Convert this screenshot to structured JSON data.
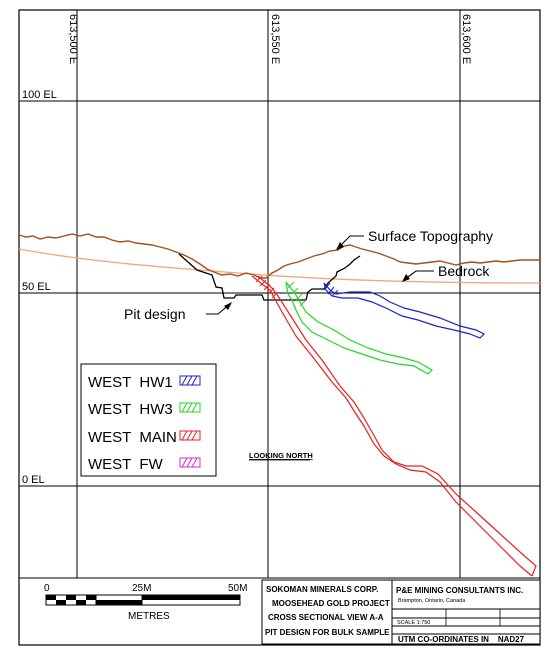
{
  "gridlines": {
    "eastings": [
      "613,500 E",
      "613,550 E",
      "613,600 E"
    ],
    "elevations": [
      "100 EL",
      "50 EL",
      "0 EL"
    ]
  },
  "callouts": {
    "surface": "Surface Topography",
    "bedrock": "Bedrock",
    "pit": "Pit design",
    "looking": "LOOKING NORTH"
  },
  "legend": {
    "items": [
      {
        "label": "WEST  HW1",
        "color": "#1f24c8"
      },
      {
        "label": "WEST  HW3",
        "color": "#22d822"
      },
      {
        "label": "WEST  MAIN",
        "color": "#e82020"
      },
      {
        "label": "WEST  FW",
        "color": "#d62bd6"
      }
    ]
  },
  "colors": {
    "topography": "#a0521a",
    "bedrock": "#f0a882",
    "pit": "#000000"
  },
  "scalebar": {
    "ticks": [
      "0",
      "25M",
      "50M"
    ],
    "unit": "METRES"
  },
  "titleblock": {
    "company": "SOKOMAN MINERALS CORP.",
    "project": "MOOSEHEAD GOLD PROJECT",
    "view": "CROSS SECTIONAL VIEW A-A",
    "purpose": "PIT DESIGN FOR BULK SAMPLE",
    "consultant": "P&E MINING CONSULTANTS INC.",
    "location": "Brampton, Ontario, Canada",
    "scale": "SCALE 1:750",
    "coords": "UTM CO-ORDINATES IN    NAD27"
  }
}
